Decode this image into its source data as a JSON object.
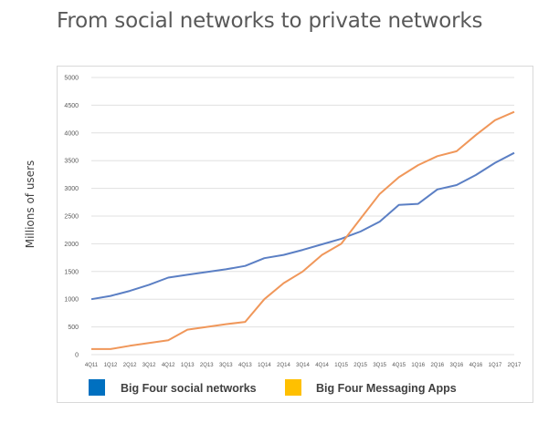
{
  "header": {
    "title": "From social networks to private networks"
  },
  "chart_data": {
    "type": "line",
    "ylabel": "Millions of users",
    "xlabel": "",
    "ylim": [
      0,
      5000
    ],
    "yticks": [
      0,
      500,
      1000,
      1500,
      2000,
      2500,
      3000,
      3500,
      4000,
      4500,
      5000
    ],
    "grid": true,
    "legend": "bottom",
    "categories": [
      "4Q11",
      "1Q12",
      "2Q12",
      "3Q12",
      "4Q12",
      "1Q13",
      "2Q13",
      "3Q13",
      "4Q13",
      "1Q14",
      "2Q14",
      "3Q14",
      "4Q14",
      "1Q15",
      "2Q15",
      "3Q15",
      "4Q15",
      "1Q16",
      "2Q16",
      "3Q16",
      "4Q16",
      "1Q17",
      "2Q17"
    ],
    "series": [
      {
        "name": "Big Four social networks",
        "color": "#5b7fc4",
        "legend_color": "#0070c0",
        "values": [
          1000,
          1060,
          1150,
          1260,
          1390,
          1440,
          1490,
          1540,
          1600,
          1740,
          1800,
          1890,
          1990,
          2090,
          2220,
          2400,
          2700,
          2720,
          2980,
          3060,
          3240,
          3460,
          3640
        ]
      },
      {
        "name": "Big Four Messaging Apps",
        "color": "#f0975a",
        "legend_color": "#ffc000",
        "values": [
          100,
          100,
          160,
          210,
          260,
          450,
          500,
          550,
          590,
          1000,
          1290,
          1500,
          1800,
          2000,
          2450,
          2900,
          3200,
          3420,
          3580,
          3670,
          3960,
          4230,
          4380
        ]
      }
    ]
  }
}
